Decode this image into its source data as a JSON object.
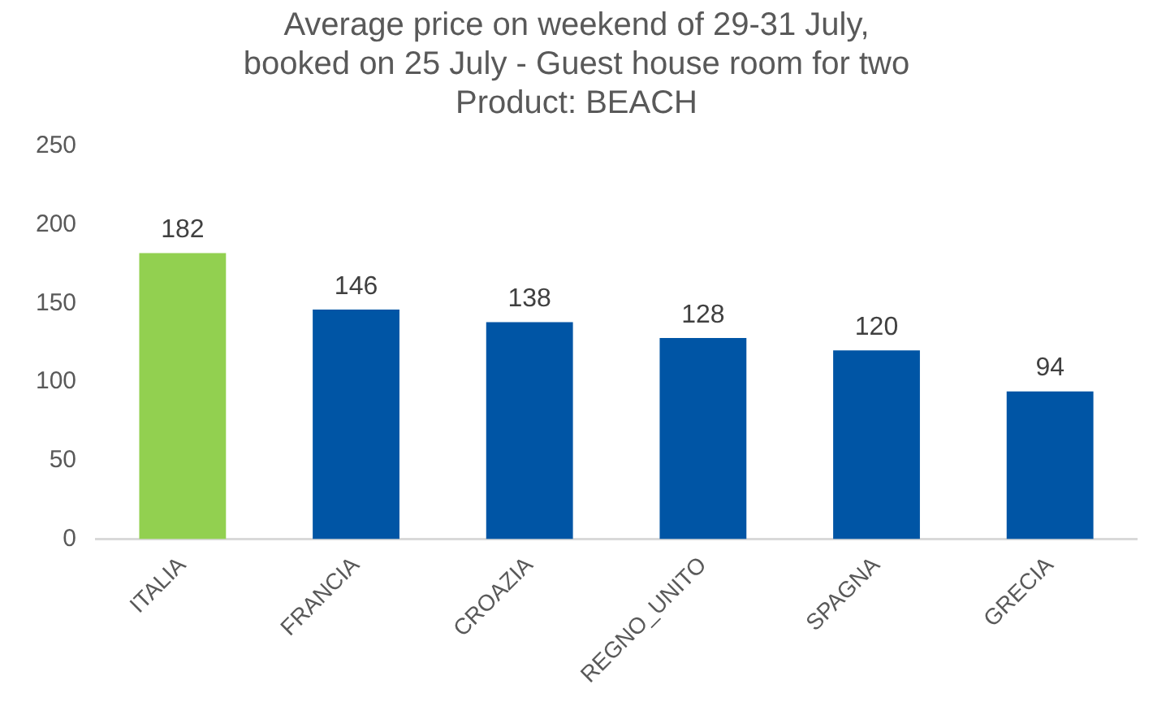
{
  "chart_data": {
    "type": "bar",
    "title": "Average price on weekend of 29-31 July,\nbooked on 25 July - Guest house room for two\nProduct: BEACH",
    "categories": [
      "ITALIA",
      "FRANCIA",
      "CROAZIA",
      "REGNO_UNITO",
      "SPAGNA",
      "GRECIA"
    ],
    "values": [
      182,
      146,
      138,
      128,
      120,
      94
    ],
    "colors": [
      "#92d050",
      "#0055a5",
      "#0055a5",
      "#0055a5",
      "#0055a5",
      "#0055a5"
    ],
    "ylim": [
      0,
      250
    ],
    "yticks": [
      0,
      50,
      100,
      150,
      200,
      250
    ],
    "grid": false,
    "legend": false,
    "data_labels": true
  }
}
